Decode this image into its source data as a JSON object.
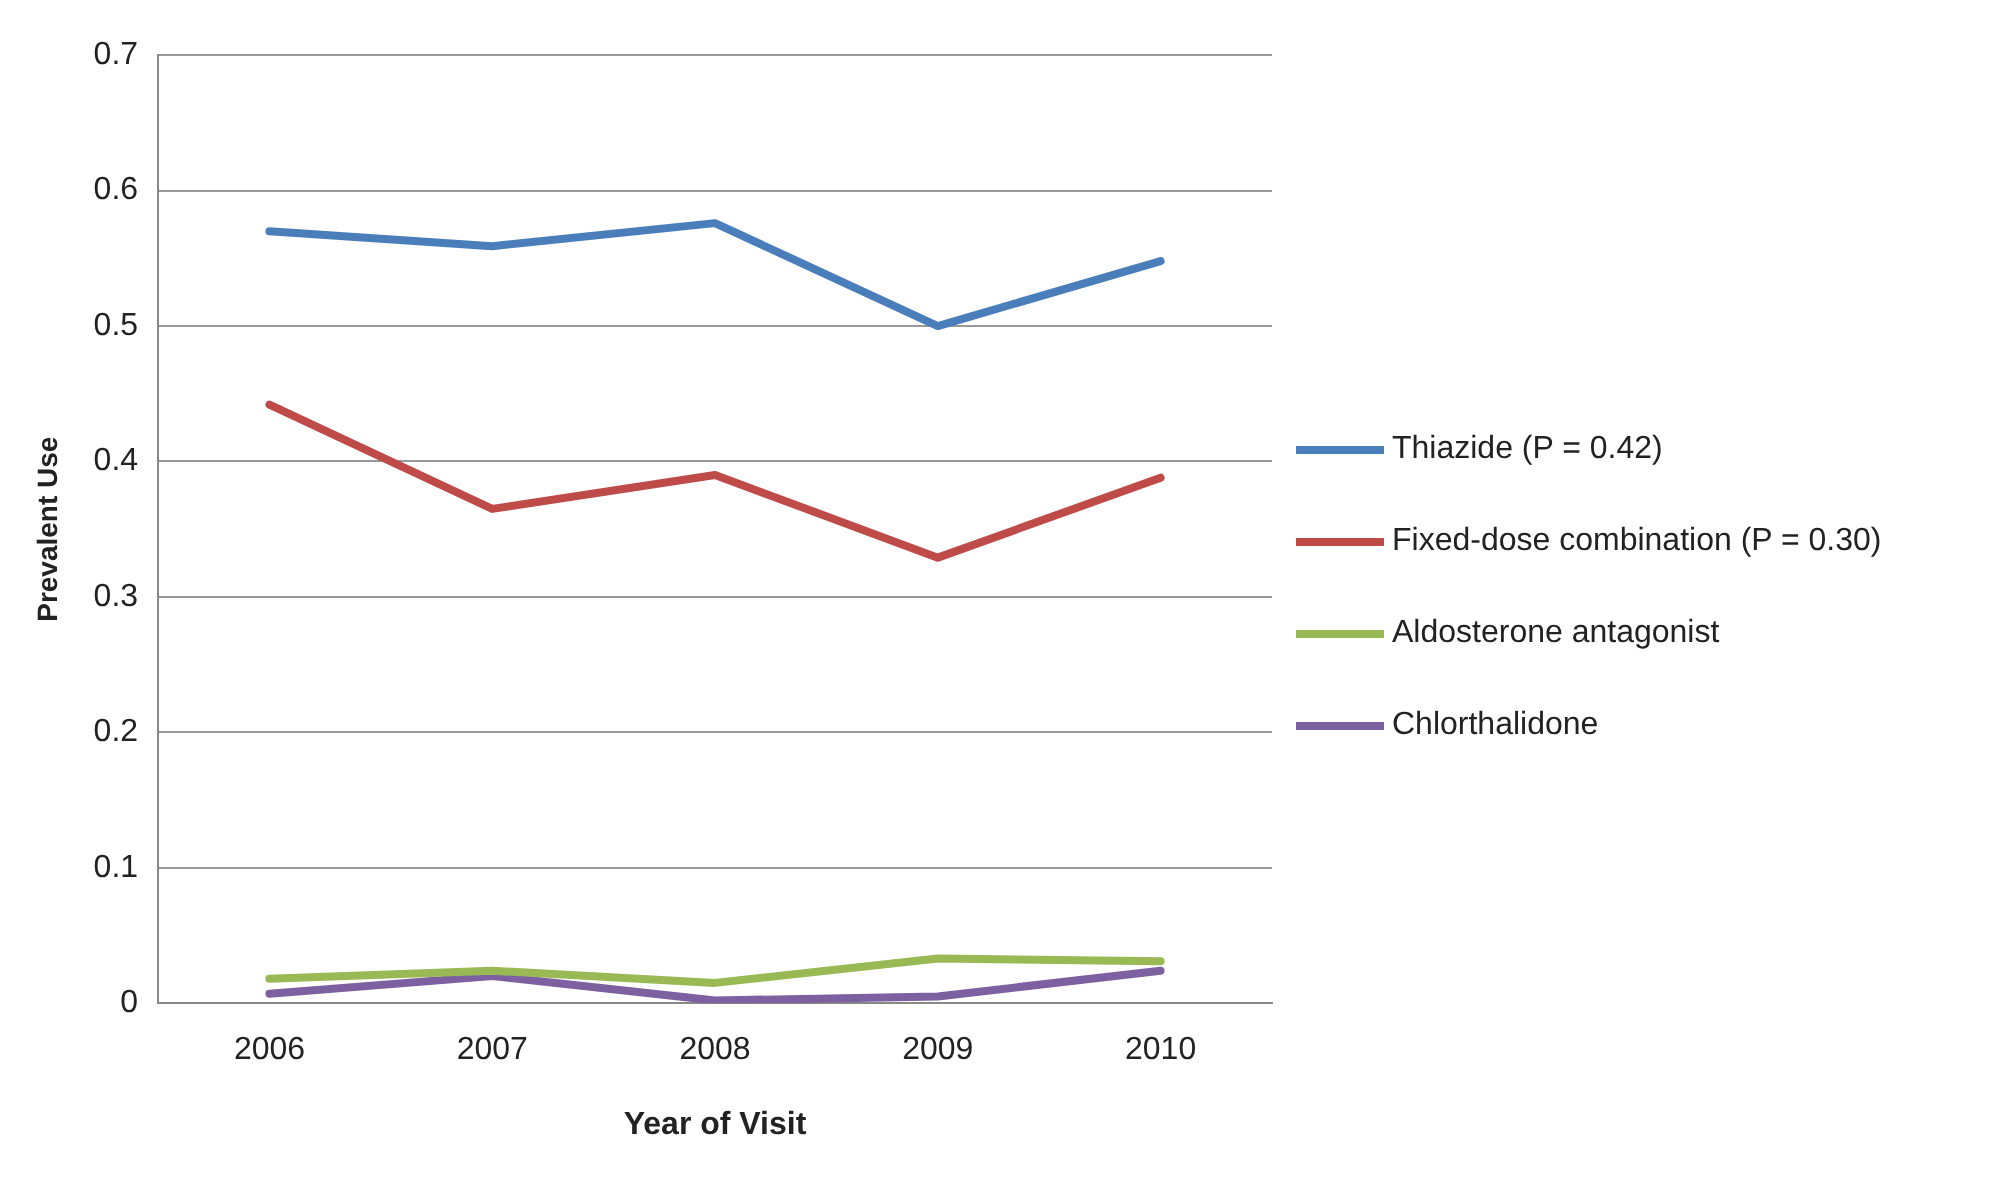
{
  "chart_data": {
    "type": "line",
    "xlabel": "Year of Visit",
    "ylabel": "Prevalent Use",
    "categories": [
      "2006",
      "2007",
      "2008",
      "2009",
      "2010"
    ],
    "series": [
      {
        "name": "Thiazide (P = 0.42)",
        "color": "#4a7ebb",
        "values": [
          0.57,
          0.559,
          0.576,
          0.5,
          0.548
        ]
      },
      {
        "name": "Fixed-dose combination (P = 0.30)",
        "color": "#be4b48",
        "values": [
          0.442,
          0.365,
          0.39,
          0.329,
          0.388
        ]
      },
      {
        "name": "Aldosterone antagonist",
        "color": "#98b954",
        "values": [
          0.018,
          0.024,
          0.015,
          0.033,
          0.031
        ]
      },
      {
        "name": "Chlorthalidone",
        "color": "#7d60a0",
        "values": [
          0.007,
          0.02,
          0.002,
          0.005,
          0.024
        ]
      }
    ],
    "ylim": [
      0,
      0.7
    ],
    "yticks": [
      0,
      0.1,
      0.2,
      0.3,
      0.4,
      0.5,
      0.6,
      0.7
    ],
    "grid": "y",
    "legend": "right",
    "marker": "none",
    "line_style": "solid"
  }
}
